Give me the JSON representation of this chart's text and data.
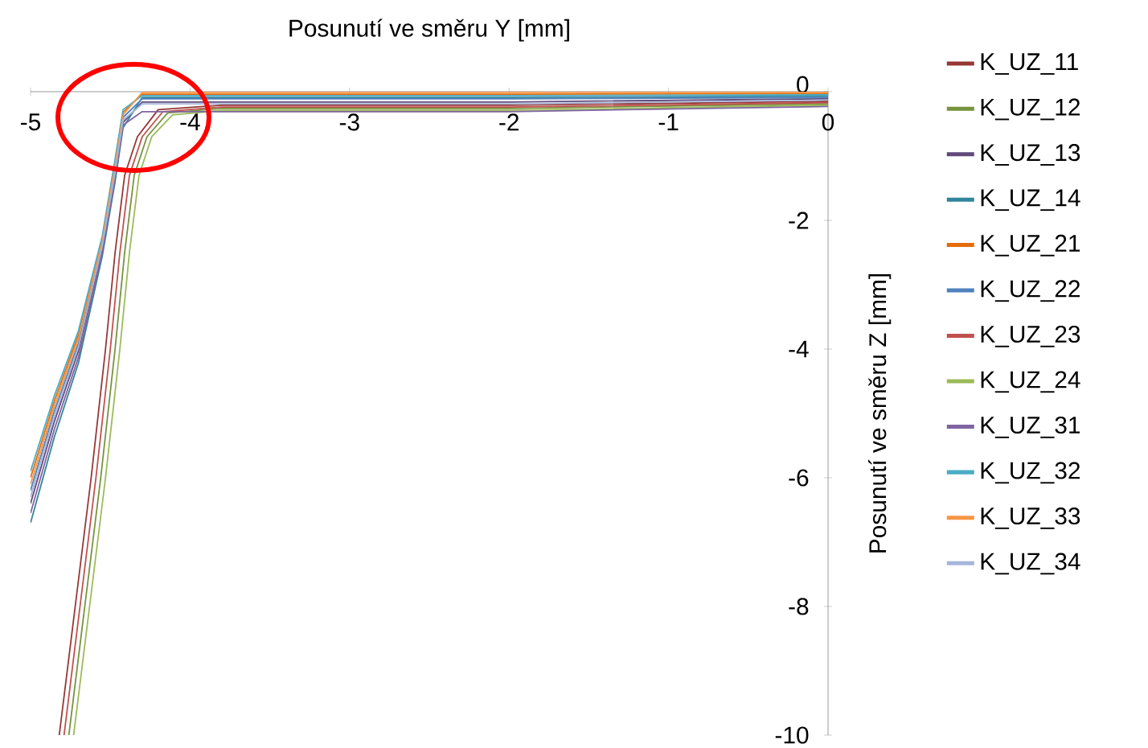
{
  "chart_data": {
    "type": "line",
    "xlabel": "Posunutí ve směru Y [mm]",
    "ylabel": "Posunutí ve směru Z [mm]",
    "xlim": [
      -5,
      0
    ],
    "ylim": [
      -10,
      0
    ],
    "xticks": [
      -5,
      -4,
      -3,
      -2,
      -1,
      0
    ],
    "yticks": [
      -10,
      -8,
      -6,
      -4,
      -2,
      0
    ],
    "grid": false,
    "legend": "right",
    "series": [
      {
        "name": "K_UZ_11",
        "color": "#953735",
        "x": [
          -4.82,
          -4.72,
          -4.62,
          -4.53,
          -4.47,
          -4.41,
          -4.33,
          -4.2,
          -3.8,
          -2,
          0
        ],
        "values": [
          -10,
          -8,
          -6,
          -4,
          -2.5,
          -1.3,
          -0.7,
          -0.28,
          -0.21,
          -0.21,
          -0.15
        ]
      },
      {
        "name": "K_UZ_12",
        "color": "#77933c",
        "x": [
          -4.76,
          -4.66,
          -4.56,
          -4.47,
          -4.41,
          -4.35,
          -4.27,
          -4.14,
          -3.8,
          -2,
          0
        ],
        "values": [
          -10,
          -8,
          -6,
          -4,
          -2.5,
          -1.3,
          -0.7,
          -0.33,
          -0.26,
          -0.26,
          -0.19
        ]
      },
      {
        "name": "K_UZ_13",
        "color": "#604a7b",
        "x": [
          -5,
          -4.85,
          -4.7,
          -4.55,
          -4.47,
          -4.42,
          -4.3,
          -2,
          0
        ],
        "values": [
          -6.4,
          -5.12,
          -4.03,
          -2.43,
          -1.3,
          -0.48,
          -0.16,
          -0.16,
          -0.11
        ]
      },
      {
        "name": "K_UZ_14",
        "color": "#31859c",
        "x": [
          -5,
          -4.85,
          -4.7,
          -4.55,
          -4.47,
          -4.42,
          -4.3,
          -2,
          0
        ],
        "values": [
          -6.7,
          -5.36,
          -4.22,
          -2.55,
          -1.4,
          -0.56,
          -0.09,
          -0.09,
          -0.07
        ]
      },
      {
        "name": "K_UZ_21",
        "color": "#e46c0a",
        "x": [
          -5,
          -4.85,
          -4.7,
          -4.55,
          -4.47,
          -4.42,
          -4.3,
          -2,
          0
        ],
        "values": [
          -6.0,
          -4.8,
          -3.78,
          -2.28,
          -1.1,
          -0.32,
          -0.04,
          -0.04,
          -0.03
        ]
      },
      {
        "name": "K_UZ_22",
        "color": "#4f81bd",
        "x": [
          -5,
          -4.85,
          -4.7,
          -4.55,
          -4.47,
          -4.42,
          -4.3,
          -2,
          0
        ],
        "values": [
          -6.2,
          -4.96,
          -3.91,
          -2.36,
          -1.2,
          -0.4,
          -0.11,
          -0.11,
          -0.09
        ]
      },
      {
        "name": "K_UZ_23",
        "color": "#c0504d",
        "x": [
          -4.79,
          -4.69,
          -4.59,
          -4.5,
          -4.44,
          -4.38,
          -4.3,
          -4.17,
          -3.8,
          -2,
          0
        ],
        "values": [
          -10,
          -8,
          -6,
          -4,
          -2.5,
          -1.3,
          -0.7,
          -0.31,
          -0.24,
          -0.24,
          -0.17
        ]
      },
      {
        "name": "K_UZ_24",
        "color": "#9bbb59",
        "x": [
          -4.73,
          -4.63,
          -4.53,
          -4.44,
          -4.38,
          -4.32,
          -4.24,
          -4.11,
          -3.8,
          -2,
          0
        ],
        "values": [
          -10,
          -8,
          -6,
          -4,
          -2.5,
          -1.3,
          -0.7,
          -0.36,
          -0.29,
          -0.29,
          -0.21
        ]
      },
      {
        "name": "K_UZ_31",
        "color": "#8064a2",
        "x": [
          -5,
          -4.85,
          -4.7,
          -4.55,
          -4.47,
          -4.42,
          -4.3,
          -2,
          0
        ],
        "values": [
          -6.55,
          -5.24,
          -4.13,
          -2.49,
          -1.35,
          -0.52,
          -0.31,
          -0.31,
          -0.23
        ]
      },
      {
        "name": "K_UZ_32",
        "color": "#4bacc6",
        "x": [
          -5,
          -4.85,
          -4.7,
          -4.55,
          -4.47,
          -4.42,
          -4.3,
          -2,
          0
        ],
        "values": [
          -5.9,
          -4.72,
          -3.72,
          -2.24,
          -1.05,
          -0.28,
          -0.06,
          -0.06,
          -0.05
        ]
      },
      {
        "name": "K_UZ_33",
        "color": "#f79646",
        "x": [
          -5,
          -4.85,
          -4.7,
          -4.55,
          -4.47,
          -4.42,
          -4.3,
          -2,
          0
        ],
        "values": [
          -6.1,
          -4.88,
          -3.84,
          -2.32,
          -1.15,
          -0.36,
          -0.01,
          -0.01,
          -0.01
        ]
      },
      {
        "name": "K_UZ_34",
        "color": "#a5b6d9",
        "x": [
          -5,
          -4.85,
          -4.7,
          -4.55,
          -4.47,
          -4.42,
          -4.3,
          -2,
          0
        ],
        "values": [
          -6.3,
          -5.04,
          -3.97,
          -2.39,
          -1.25,
          -0.44,
          -0.19,
          -0.19,
          -0.13
        ]
      }
    ]
  }
}
